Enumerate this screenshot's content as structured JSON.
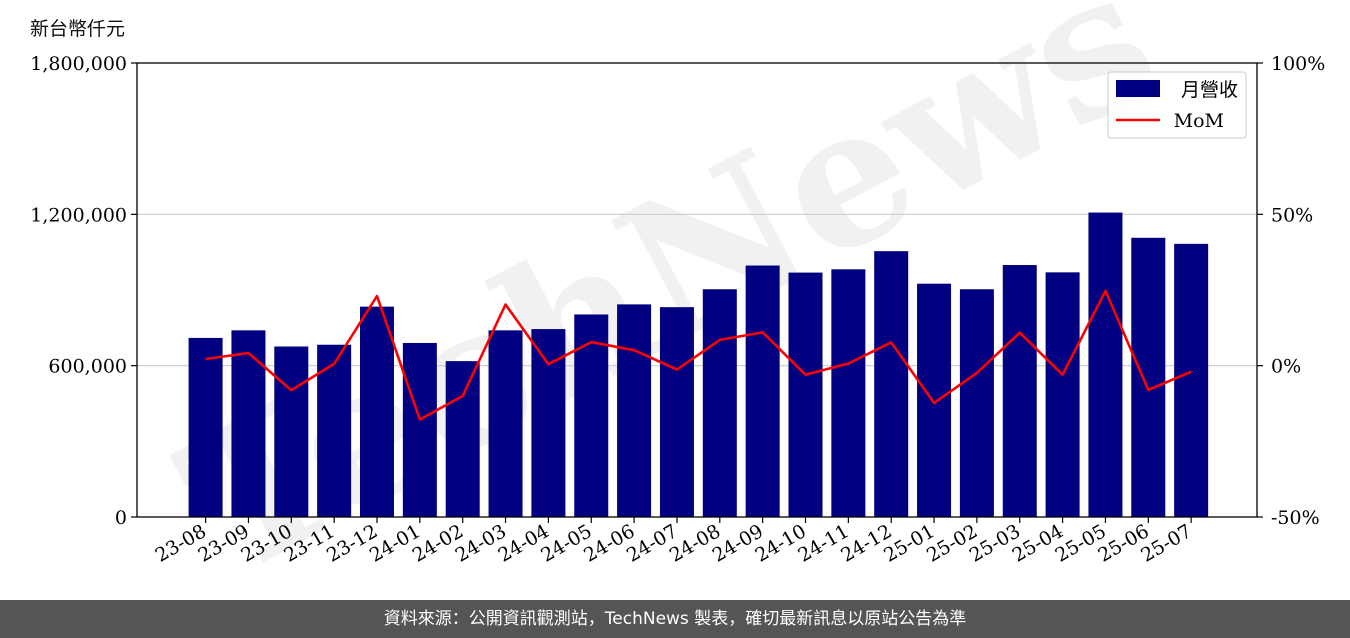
{
  "chart_data": {
    "type": "bar",
    "ylabel": "新台幣仟元",
    "categories": [
      "23-08",
      "23-09",
      "23-10",
      "23-11",
      "23-12",
      "24-01",
      "24-02",
      "24-03",
      "24-04",
      "24-05",
      "24-06",
      "24-07",
      "24-08",
      "24-09",
      "24-10",
      "24-11",
      "24-12",
      "25-01",
      "25-02",
      "25-03",
      "25-04",
      "25-05",
      "25-06",
      "25-07"
    ],
    "series": [
      {
        "name": "月營收",
        "type": "bar",
        "axis": "left",
        "color": "#000080",
        "values": [
          710000,
          740000,
          676000,
          683000,
          834000,
          690000,
          618000,
          740000,
          745000,
          803000,
          843000,
          832000,
          903000,
          997000,
          969000,
          982000,
          1054000,
          925000,
          903000,
          999000,
          970000,
          1207000,
          1107000,
          1083000
        ]
      },
      {
        "name": "MoM",
        "type": "line",
        "axis": "right",
        "color": "#ff0000",
        "values": [
          2.2,
          4.2,
          -8.1,
          0.6,
          23.0,
          -17.8,
          -10.0,
          20.2,
          0.5,
          7.8,
          5.1,
          -1.3,
          8.5,
          11.0,
          -3.0,
          0.7,
          7.7,
          -12.3,
          -2.4,
          10.9,
          -3.0,
          24.7,
          -8.0,
          -2.0
        ]
      }
    ],
    "y_left": {
      "range": [
        0,
        1800000
      ],
      "ticks": [
        0,
        600000,
        1200000,
        1800000
      ],
      "tick_labels": [
        "0",
        "600,000",
        "1,200,000",
        "1,800,000"
      ]
    },
    "y_right": {
      "range": [
        -50,
        100
      ],
      "ticks": [
        -50,
        0,
        50,
        100
      ],
      "tick_labels": [
        "-50%",
        "0%",
        "50%",
        "100%"
      ]
    },
    "grid": "horizontal",
    "legend": "top-right"
  },
  "watermark": "TechNews",
  "footer": {
    "text": "資料來源：公開資訊觀測站，TechNews 製表，確切最新訊息以原站公告為準"
  }
}
